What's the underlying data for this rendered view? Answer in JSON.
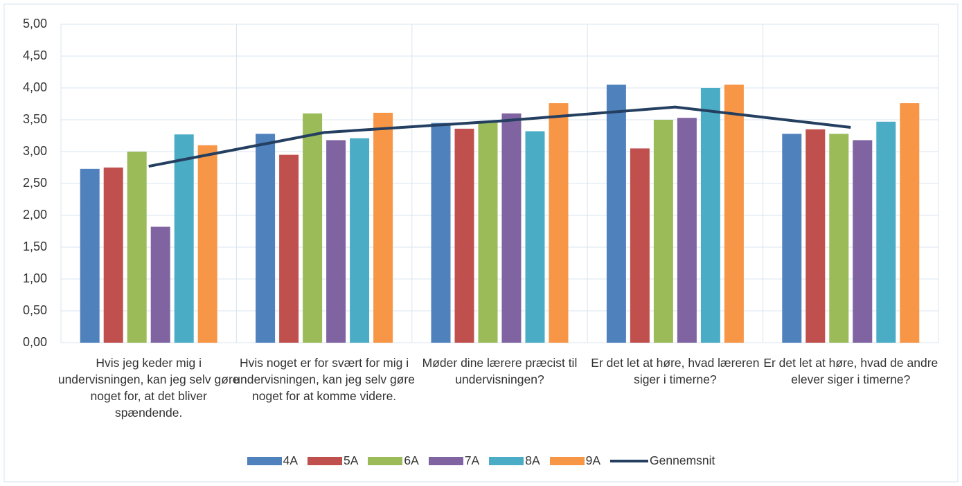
{
  "chart_data": {
    "type": "bar",
    "categories": [
      "Hvis jeg keder mig i undervisningen, kan jeg selv gøre noget for, at det bliver spændende.",
      "Hvis noget er for svært for mig i undervisningen, kan jeg selv gøre noget for at komme videre.",
      "Møder dine lærere præcist til undervisningen?",
      "Er det let at høre, hvad læreren siger i timerne?",
      "Er det let at høre, hvad de andre elever siger i timerne?"
    ],
    "series": [
      {
        "name": "4A",
        "color": "#4f81bd",
        "values": [
          2.73,
          3.28,
          3.45,
          4.05,
          3.28
        ]
      },
      {
        "name": "5A",
        "color": "#c0504d",
        "values": [
          2.75,
          2.95,
          3.36,
          3.05,
          3.35
        ]
      },
      {
        "name": "6A",
        "color": "#9bbb59",
        "values": [
          3.0,
          3.6,
          3.47,
          3.5,
          3.28
        ]
      },
      {
        "name": "7A",
        "color": "#8064a2",
        "values": [
          1.82,
          3.18,
          3.6,
          3.53,
          3.18
        ]
      },
      {
        "name": "8A",
        "color": "#4bacc6",
        "values": [
          3.27,
          3.21,
          3.32,
          4.0,
          3.47
        ]
      },
      {
        "name": "9A",
        "color": "#f79646",
        "values": [
          3.1,
          3.61,
          3.76,
          4.05,
          3.76
        ]
      },
      {
        "name": "Gennemsnit",
        "type": "line",
        "color": "#243f60",
        "values": [
          2.77,
          3.3,
          3.48,
          3.7,
          3.38
        ]
      }
    ],
    "ylim": [
      0,
      5
    ],
    "yticks": [
      {
        "value": 0,
        "label": "0,00"
      },
      {
        "value": 0.5,
        "label": "0,50"
      },
      {
        "value": 1,
        "label": "1,00"
      },
      {
        "value": 1.5,
        "label": "1,50"
      },
      {
        "value": 2,
        "label": "2,00"
      },
      {
        "value": 2.5,
        "label": "2,50"
      },
      {
        "value": 3,
        "label": "3,00"
      },
      {
        "value": 3.5,
        "label": "3,50"
      },
      {
        "value": 4,
        "label": "4,00"
      },
      {
        "value": 4.5,
        "label": "4,50"
      },
      {
        "value": 5,
        "label": "5,00"
      }
    ],
    "grid": true,
    "legend": "bottom"
  }
}
